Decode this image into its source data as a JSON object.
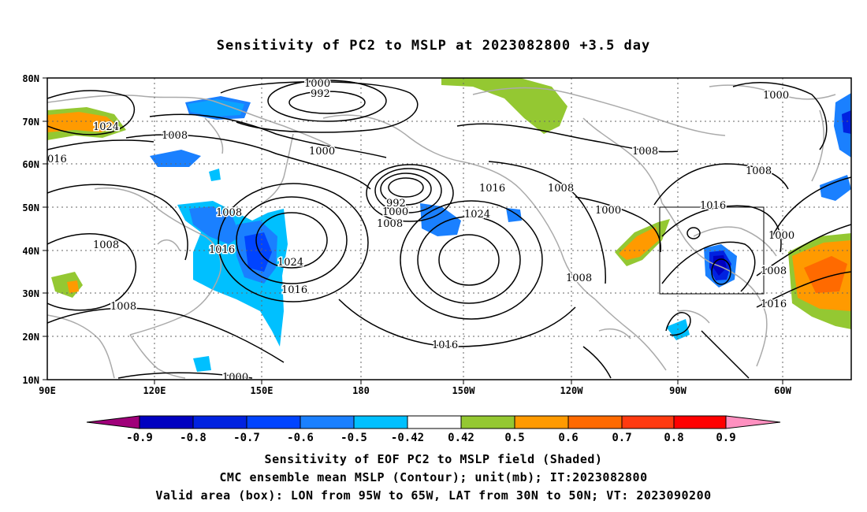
{
  "title": "Sensitivity of PC2 to MSLP at 2023082800 +3.5 day",
  "map": {
    "lat_labels": [
      "80N",
      "70N",
      "60N",
      "50N",
      "40N",
      "30N",
      "20N",
      "10N"
    ],
    "lon_labels": [
      "90E",
      "120E",
      "150E",
      "180",
      "150W",
      "120W",
      "90W",
      "60W"
    ],
    "contour_labels": [
      {
        "text": "1000"
      },
      {
        "text": "992"
      },
      {
        "text": "1024"
      },
      {
        "text": "1008"
      },
      {
        "text": "016"
      },
      {
        "text": "1000"
      },
      {
        "text": "1008"
      },
      {
        "text": "1016"
      },
      {
        "text": "1024"
      },
      {
        "text": "1016"
      },
      {
        "text": "1008"
      },
      {
        "text": "1008"
      },
      {
        "text": "992"
      },
      {
        "text": "1000"
      },
      {
        "text": "1008"
      },
      {
        "text": "1016"
      },
      {
        "text": "1024"
      },
      {
        "text": "1008"
      },
      {
        "text": "1016"
      },
      {
        "text": "1000"
      },
      {
        "text": "1008"
      },
      {
        "text": "1008"
      },
      {
        "text": "1000"
      },
      {
        "text": "1016"
      },
      {
        "text": "1000"
      },
      {
        "text": "1008"
      },
      {
        "text": "1016"
      },
      {
        "text": "1000"
      },
      {
        "text": "1008"
      }
    ],
    "colors": {
      "frame": "#000000",
      "coast": "#aaaaaa",
      "grid": "#666666"
    }
  },
  "colorbar": {
    "tick_labels": [
      "-0.9",
      "-0.8",
      "-0.7",
      "-0.6",
      "-0.5",
      "-0.42",
      "0.42",
      "0.5",
      "0.6",
      "0.7",
      "0.8",
      "0.9"
    ],
    "colors": [
      "#a0007a",
      "#0000c0",
      "#0022e0",
      "#0044ff",
      "#1a80ff",
      "#00c0ff",
      "#ffffff",
      "#94c832",
      "#ff9a00",
      "#ff6a00",
      "#ff3a10",
      "#ff0000",
      "#ff90c0"
    ]
  },
  "notes": [
    "Sensitivity of EOF PC2 to MSLP field (Shaded)",
    "CMC ensemble mean MSLP (Contour); unit(mb); IT:2023082800",
    "Valid area (box): LON from 95W to 65W, LAT from 30N to 50N; VT: 2023090200"
  ]
}
